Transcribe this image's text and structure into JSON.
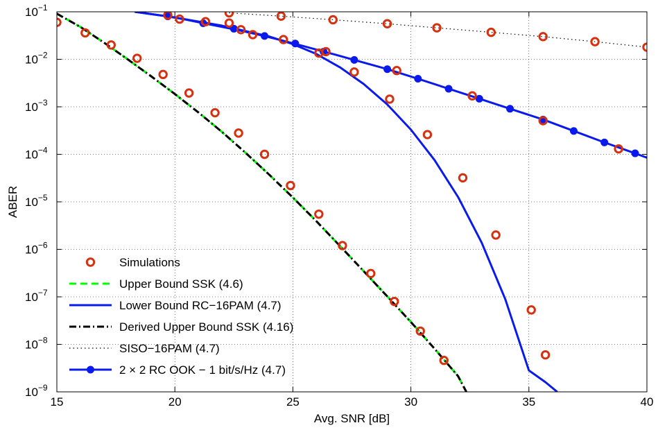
{
  "chart_data": {
    "type": "line",
    "xlabel": "Avg. SNR [dB]",
    "ylabel": "ABER",
    "yscale": "log",
    "xlim": [
      15,
      40
    ],
    "ylim": [
      1e-09,
      0.1
    ],
    "grid": true,
    "legend_position": "bottom-left",
    "x_ticks": [
      "15",
      "20",
      "25",
      "30",
      "35",
      "40"
    ],
    "y_ticks": [
      {
        "base": "10",
        "exp": "−1",
        "value": 0.1
      },
      {
        "base": "10",
        "exp": "−2",
        "value": 0.01
      },
      {
        "base": "10",
        "exp": "−3",
        "value": 0.001
      },
      {
        "base": "10",
        "exp": "−4",
        "value": 0.0001
      },
      {
        "base": "10",
        "exp": "−5",
        "value": 1e-05
      },
      {
        "base": "10",
        "exp": "−6",
        "value": 1e-06
      },
      {
        "base": "10",
        "exp": "−7",
        "value": 1e-07
      },
      {
        "base": "10",
        "exp": "−8",
        "value": 1e-08
      },
      {
        "base": "10",
        "exp": "−9",
        "value": 1e-09
      }
    ],
    "series": [
      {
        "name": "Simulations",
        "style": "marker",
        "color": "#d7300f",
        "groups": [
          {
            "x": [
              15,
              16.2,
              17.3,
              18.4,
              19.5,
              20.6,
              21.7,
              22.7,
              23.8,
              24.9,
              26.1,
              27.1,
              28.3,
              29.3,
              30.4,
              31.4
            ],
            "y": [
              0.06,
              0.036,
              0.02,
              0.0105,
              0.0048,
              0.00195,
              0.00075,
              0.00028,
              0.0001,
              2.2e-05,
              5.5e-06,
              1.2e-06,
              3.1e-07,
              8e-08,
              1.9e-08,
              4.6e-09
            ]
          },
          {
            "x": [
              19.7,
              20.2,
              21.3,
              22.3,
              22.8,
              23.3,
              24.6,
              26.1,
              26.4,
              27.6,
              29.1,
              30.7,
              32.2,
              33.6,
              35.1,
              35.7
            ],
            "y": [
              0.085,
              0.07,
              0.062,
              0.058,
              0.042,
              0.033,
              0.026,
              0.0135,
              0.0145,
              0.0054,
              0.00145,
              0.00026,
              3.2e-05,
              2e-06,
              5.3e-08,
              6e-09
            ]
          },
          {
            "x": [
              29.4,
              32.6,
              35.6,
              38.8
            ],
            "y": [
              0.0058,
              0.0017,
              0.00051,
              0.00013
            ]
          },
          {
            "x": [
              22.3,
              24.5,
              26.7,
              29.0,
              31.1,
              33.4,
              35.6,
              37.8,
              40.0
            ],
            "y": [
              0.095,
              0.081,
              0.068,
              0.056,
              0.046,
              0.037,
              0.03,
              0.0235,
              0.018
            ]
          }
        ]
      },
      {
        "name": "Upper Bound SSK (4.6)",
        "style": "dashed",
        "color": "#00ff00",
        "x": [
          15,
          16,
          17,
          18,
          19,
          20,
          21,
          22,
          23,
          24,
          25,
          26,
          27,
          28,
          29,
          30,
          31,
          32,
          32.35
        ],
        "y": [
          0.0912,
          0.0479,
          0.0224,
          0.01,
          0.00437,
          0.00186,
          0.000759,
          0.000295,
          0.000107,
          3.72e-05,
          1.23e-05,
          3.89e-06,
          1.17e-06,
          3.47e-07,
          1.02e-07,
          2.95e-08,
          8.13e-09,
          2.14e-09,
          1e-09
        ]
      },
      {
        "name": "Lower Bound RC−16PAM (4.7)",
        "style": "solid",
        "color": "#0a1aec",
        "x": [
          18.3,
          20,
          22,
          24,
          25,
          26,
          27,
          28,
          29,
          30,
          31,
          32,
          33,
          34,
          35,
          35.7,
          36.2
        ],
        "y": [
          0.1,
          0.076,
          0.051,
          0.0302,
          0.0209,
          0.0129,
          0.00676,
          0.00302,
          0.00112,
          0.000331,
          7.59e-05,
          1.26e-05,
          1.38e-06,
          8.91e-08,
          2.82e-09,
          1.6e-09,
          1e-09
        ]
      },
      {
        "name": "Derived Upper Bound SSK (4.16)",
        "style": "dash-dot",
        "color": "#000000",
        "x": [
          15,
          16,
          17,
          18,
          19,
          20,
          21,
          22,
          23,
          24,
          25,
          26,
          27,
          28,
          29,
          30,
          31,
          32,
          32.35
        ],
        "y": [
          0.0912,
          0.0479,
          0.0224,
          0.01,
          0.00437,
          0.00186,
          0.000759,
          0.000295,
          0.000107,
          3.72e-05,
          1.23e-05,
          3.89e-06,
          1.17e-06,
          3.47e-07,
          1.02e-07,
          2.95e-08,
          8.13e-09,
          2.14e-09,
          1e-09
        ]
      },
      {
        "name": "SISO−16PAM (4.7)",
        "style": "dotted",
        "color": "#000000",
        "x": [
          22.3,
          24.5,
          26.7,
          29.0,
          31.1,
          33.4,
          35.6,
          37.8,
          40.0
        ],
        "y": [
          0.095,
          0.081,
          0.068,
          0.056,
          0.046,
          0.037,
          0.03,
          0.0235,
          0.018
        ]
      },
      {
        "name": "2 × 2 RC OOK − 1 bit/s/Hz (4.7)",
        "style": "solid-marker",
        "color": "#0a1aec",
        "x": [
          18.3,
          19.7,
          20.5,
          21.2,
          22.0,
          22.8,
          23.6,
          24.4,
          25.2,
          26.0,
          26.8,
          27.6,
          29.0,
          30.3,
          31.6,
          32.9,
          34.2,
          35.6,
          36.9,
          38.2,
          39.5,
          40.0
        ],
        "y": [
          0.1,
          0.08,
          0.068,
          0.0575,
          0.048,
          0.04,
          0.0325,
          0.026,
          0.0205,
          0.016,
          0.0125,
          0.0097,
          0.0062,
          0.0039,
          0.0024,
          0.00148,
          0.00091,
          0.00054,
          0.00031,
          0.000178,
          0.000105,
          8.5e-05
        ],
        "markers_x": [
          19.7,
          21.2,
          22.5,
          23.8,
          25.1,
          26.3,
          27.6,
          29.0,
          30.3,
          31.6,
          32.9,
          34.2,
          35.6,
          36.9,
          38.2,
          39.5
        ],
        "markers_y": [
          0.08,
          0.0575,
          0.044,
          0.031,
          0.0215,
          0.0145,
          0.0097,
          0.0062,
          0.0039,
          0.0024,
          0.00148,
          0.00091,
          0.00054,
          0.00031,
          0.000178,
          0.000105
        ]
      }
    ]
  }
}
